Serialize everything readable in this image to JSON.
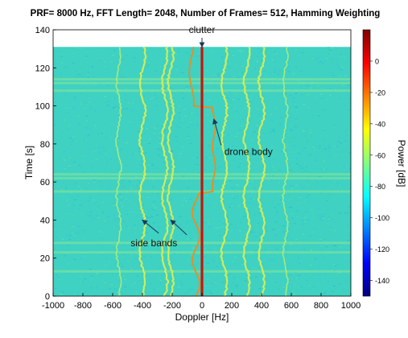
{
  "chart_data": {
    "type": "heatmap",
    "title": "PRF= 8000 Hz, FFT Length= 2048, Number of Frames= 512, Hamming Weighting",
    "xlabel": "Doppler [Hz]",
    "ylabel": "Time [s]",
    "xlim": [
      -1000,
      1000
    ],
    "ylim": [
      0,
      140
    ],
    "data_time_range": [
      0,
      131
    ],
    "x_ticks": [
      "-1000",
      "-800",
      "-600",
      "-400",
      "-200",
      "0",
      "200",
      "400",
      "600",
      "800",
      "1000"
    ],
    "y_ticks": [
      "0",
      "20",
      "40",
      "60",
      "80",
      "100",
      "120",
      "140"
    ],
    "colorbar": {
      "label": "Power [dB]",
      "range": [
        -150,
        20
      ],
      "ticks": [
        "0",
        "-20",
        "-40",
        "-60",
        "-80",
        "-100",
        "-120",
        "-140"
      ],
      "colormap": "jet"
    },
    "grid": false,
    "annotations": [
      {
        "text": "clutter",
        "x": 0,
        "y": 140,
        "arrow_to": [
          0,
          131
        ]
      },
      {
        "text": "drone body",
        "x": 150,
        "y": 76,
        "arrow_to": [
          80,
          93
        ]
      },
      {
        "text": "side bands",
        "x": -480,
        "y": 28,
        "arrow_to": [
          -400,
          40
        ],
        "arrow_to_2": [
          -210,
          40
        ]
      }
    ],
    "features": {
      "clutter_line_doppler_hz": 0,
      "drone_body_doppler_hz_approx": [
        -70,
        120
      ],
      "side_band_doppler_hz_approx": [
        -400,
        -250,
        -210,
        150,
        300,
        400
      ],
      "horizontal_band_times_s": [
        13,
        23,
        28,
        55,
        62,
        64,
        108,
        112,
        114
      ]
    }
  }
}
